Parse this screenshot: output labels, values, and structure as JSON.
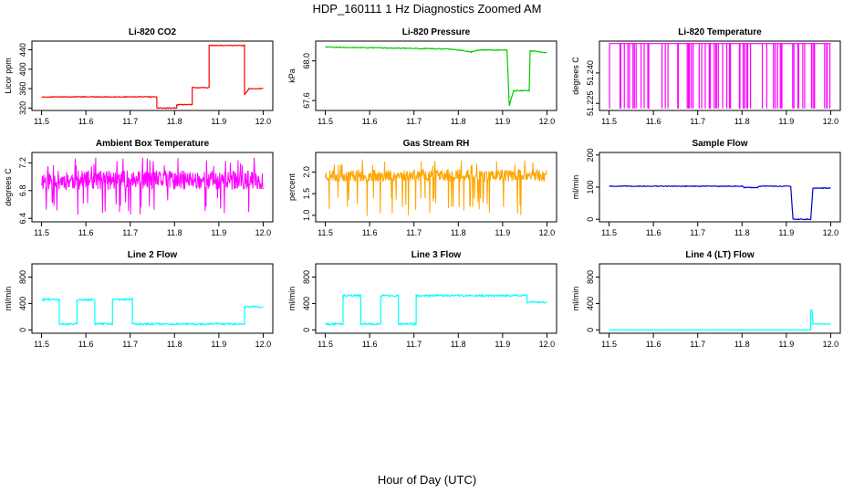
{
  "figure": {
    "title": "HDP_160111  1 Hz Diagnostics Zoomed AM",
    "xlabel": "Hour of Day (UTC)"
  },
  "chart_data": [
    {
      "type": "line",
      "title": "Li-820 CO2",
      "ylabel": "Licor ppm",
      "color": "#ff0000",
      "xlim": [
        11.5,
        12.0
      ],
      "ylim": [
        315,
        458
      ],
      "xticks": [
        "11.5",
        "11.6",
        "11.7",
        "11.8",
        "11.9",
        "12.0"
      ],
      "xtick_values": [
        11.5,
        11.6,
        11.7,
        11.8,
        11.9,
        12.0
      ],
      "yticks": [
        "320",
        "360",
        "400",
        "440"
      ],
      "ytick_values": [
        320,
        360,
        400,
        440
      ],
      "series": [
        {
          "name": "CO2",
          "style": "step",
          "noise": 0.8,
          "points": [
            [
              11.5,
              343
            ],
            [
              11.76,
              343
            ],
            [
              11.76,
              320
            ],
            [
              11.805,
              320
            ],
            [
              11.805,
              327
            ],
            [
              11.84,
              327
            ],
            [
              11.84,
              362
            ],
            [
              11.878,
              362
            ],
            [
              11.878,
              449
            ],
            [
              11.958,
              449
            ],
            [
              11.958,
              347
            ],
            [
              11.968,
              360
            ],
            [
              12.0,
              360
            ]
          ]
        }
      ]
    },
    {
      "type": "line",
      "title": "Li-820 Pressure",
      "ylabel": "kPa",
      "color": "#00cc00",
      "xlim": [
        11.5,
        12.0
      ],
      "ylim": [
        67.5,
        68.2
      ],
      "xticks": [
        "11.5",
        "11.6",
        "11.7",
        "11.8",
        "11.9",
        "12.0"
      ],
      "xtick_values": [
        11.5,
        11.6,
        11.7,
        11.8,
        11.9,
        12.0
      ],
      "yticks": [
        "67.6",
        "68.0"
      ],
      "ytick_values": [
        67.6,
        68.0
      ],
      "series": [
        {
          "name": "Pressure",
          "style": "step",
          "noise": 0.004,
          "points": [
            [
              11.5,
              68.14
            ],
            [
              11.78,
              68.12
            ],
            [
              11.8,
              68.11
            ],
            [
              11.83,
              68.09
            ],
            [
              11.845,
              68.11
            ],
            [
              11.91,
              68.11
            ],
            [
              11.915,
              67.55
            ],
            [
              11.925,
              67.7
            ],
            [
              11.96,
              67.7
            ],
            [
              11.962,
              68.1
            ],
            [
              11.97,
              68.1
            ],
            [
              12.0,
              68.08
            ]
          ]
        }
      ]
    },
    {
      "type": "line",
      "title": "Li-820 Temperature",
      "ylabel": "degrees C",
      "color": "#ff00ff",
      "xlim": [
        11.5,
        12.0
      ],
      "ylim": [
        51.2215,
        51.2557
      ],
      "xticks": [
        "11.5",
        "11.6",
        "11.7",
        "11.8",
        "11.9",
        "12.0"
      ],
      "xtick_values": [
        11.5,
        11.6,
        11.7,
        11.8,
        11.9,
        12.0
      ],
      "yticks": [
        "51.225",
        "51.240"
      ],
      "ytick_values": [
        51.225,
        51.24
      ],
      "series": [
        {
          "name": "Temperature",
          "style": "spikes",
          "base": 51.2545,
          "low": 51.2225,
          "seed": 7,
          "count": 70
        }
      ]
    },
    {
      "type": "line",
      "title": "Ambient Box Temperature",
      "ylabel": "degrees C",
      "color": "#ff00ff",
      "xlim": [
        11.5,
        12.0
      ],
      "ylim": [
        6.35,
        7.35
      ],
      "xticks": [
        "11.5",
        "11.6",
        "11.7",
        "11.8",
        "11.9",
        "12.0"
      ],
      "xtick_values": [
        11.5,
        11.6,
        11.7,
        11.8,
        11.9,
        12.0
      ],
      "yticks": [
        "6.4",
        "6.8",
        "7.2"
      ],
      "ytick_values": [
        6.4,
        6.8,
        7.2
      ],
      "series": [
        {
          "name": "Box temperature",
          "style": "noise",
          "mean": 6.95,
          "amp": 0.14,
          "spikes_low": 6.45,
          "spikes_high": 7.28,
          "seed": 11,
          "count": 520
        }
      ]
    },
    {
      "type": "scatter",
      "title": "Gas Stream RH",
      "ylabel": "percent",
      "color": "#ffa500",
      "xlim": [
        11.5,
        12.0
      ],
      "ylim": [
        0.85,
        2.45
      ],
      "xticks": [
        "11.5",
        "11.6",
        "11.7",
        "11.8",
        "11.9",
        "12.0"
      ],
      "xtick_values": [
        11.5,
        11.6,
        11.7,
        11.8,
        11.9,
        12.0
      ],
      "yticks": [
        "1.0",
        "1.5",
        "2.0"
      ],
      "ytick_values": [
        1.0,
        1.5,
        2.0
      ],
      "series": [
        {
          "name": "RH",
          "style": "noise",
          "mean": 1.92,
          "amp": 0.14,
          "spikes_low": 0.95,
          "spikes_high": 2.3,
          "seed": 23,
          "count": 520
        }
      ]
    },
    {
      "type": "line",
      "title": "Sample Flow",
      "ylabel": "ml/min",
      "color": "#0000cc",
      "xlim": [
        11.5,
        12.0
      ],
      "ylim": [
        -8,
        208
      ],
      "xticks": [
        "11.5",
        "11.6",
        "11.7",
        "11.8",
        "11.9",
        "12.0"
      ],
      "xtick_values": [
        11.5,
        11.6,
        11.7,
        11.8,
        11.9,
        12.0
      ],
      "yticks": [
        "0",
        "100",
        "200"
      ],
      "ytick_values": [
        0,
        100,
        200
      ],
      "series": [
        {
          "name": "Sample flow",
          "style": "step",
          "noise": 1.2,
          "points": [
            [
              11.5,
              103
            ],
            [
              11.8,
              103
            ],
            [
              11.805,
              99
            ],
            [
              11.835,
              99
            ],
            [
              11.84,
              103
            ],
            [
              11.91,
              103
            ],
            [
              11.915,
              0
            ],
            [
              11.955,
              0
            ],
            [
              11.96,
              97
            ],
            [
              12.0,
              97
            ]
          ]
        }
      ]
    },
    {
      "type": "line",
      "title": "Line 2 Flow",
      "ylabel": "ml/min",
      "color": "#00ffff",
      "xlim": [
        11.5,
        12.0
      ],
      "ylim": [
        -50,
        1000
      ],
      "xticks": [
        "11.5",
        "11.6",
        "11.7",
        "11.8",
        "11.9",
        "12.0"
      ],
      "xtick_values": [
        11.5,
        11.6,
        11.7,
        11.8,
        11.9,
        12.0
      ],
      "yticks": [
        "0",
        "400",
        "800"
      ],
      "ytick_values": [
        0,
        400,
        800
      ],
      "series": [
        {
          "name": "Line 2",
          "style": "step",
          "noise": 14,
          "points": [
            [
              11.5,
              460
            ],
            [
              11.54,
              460
            ],
            [
              11.54,
              90
            ],
            [
              11.58,
              90
            ],
            [
              11.58,
              460
            ],
            [
              11.62,
              460
            ],
            [
              11.62,
              90
            ],
            [
              11.66,
              90
            ],
            [
              11.66,
              460
            ],
            [
              11.705,
              460
            ],
            [
              11.705,
              90
            ],
            [
              11.958,
              90
            ],
            [
              11.958,
              350
            ],
            [
              12.0,
              350
            ]
          ]
        }
      ]
    },
    {
      "type": "line",
      "title": "Line 3 Flow",
      "ylabel": "ml/min",
      "color": "#00ffff",
      "xlim": [
        11.5,
        12.0
      ],
      "ylim": [
        -50,
        1000
      ],
      "xticks": [
        "11.5",
        "11.6",
        "11.7",
        "11.8",
        "11.9",
        "12.0"
      ],
      "xtick_values": [
        11.5,
        11.6,
        11.7,
        11.8,
        11.9,
        12.0
      ],
      "yticks": [
        "0",
        "400",
        "800"
      ],
      "ytick_values": [
        0,
        400,
        800
      ],
      "series": [
        {
          "name": "Line 3",
          "style": "step",
          "noise": 14,
          "points": [
            [
              11.5,
              90
            ],
            [
              11.54,
              90
            ],
            [
              11.54,
              520
            ],
            [
              11.58,
              520
            ],
            [
              11.58,
              90
            ],
            [
              11.625,
              90
            ],
            [
              11.625,
              520
            ],
            [
              11.665,
              520
            ],
            [
              11.665,
              90
            ],
            [
              11.705,
              90
            ],
            [
              11.705,
              520
            ],
            [
              11.955,
              520
            ],
            [
              11.955,
              420
            ],
            [
              12.0,
              420
            ]
          ]
        }
      ]
    },
    {
      "type": "line",
      "title": "Line 4 (LT) Flow",
      "ylabel": "ml/min",
      "color": "#00ffff",
      "xlim": [
        11.5,
        12.0
      ],
      "ylim": [
        -50,
        1000
      ],
      "xticks": [
        "11.5",
        "11.6",
        "11.7",
        "11.8",
        "11.9",
        "12.0"
      ],
      "xtick_values": [
        11.5,
        11.6,
        11.7,
        11.8,
        11.9,
        12.0
      ],
      "yticks": [
        "0",
        "400",
        "800"
      ],
      "ytick_values": [
        0,
        400,
        800
      ],
      "series": [
        {
          "name": "Line 4",
          "style": "step",
          "noise": 2,
          "points": [
            [
              11.5,
              0
            ],
            [
              11.955,
              0
            ],
            [
              11.955,
              300
            ],
            [
              11.958,
              300
            ],
            [
              11.96,
              90
            ],
            [
              12.0,
              90
            ]
          ]
        }
      ]
    }
  ]
}
